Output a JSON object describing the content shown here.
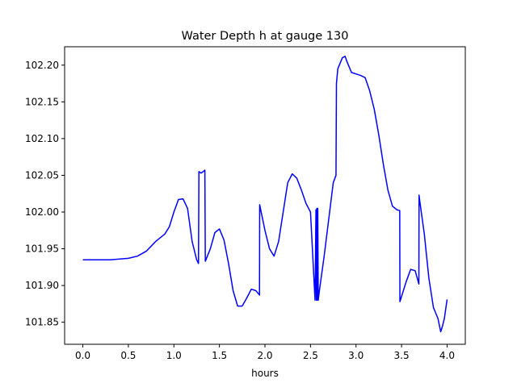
{
  "chart_data": {
    "type": "line",
    "title": "Water Depth h at gauge 130",
    "xlabel": "hours",
    "ylabel": "",
    "xlim": [
      -0.2,
      4.2
    ],
    "ylim": [
      101.82,
      102.225
    ],
    "xticks": [
      0.0,
      0.5,
      1.0,
      1.5,
      2.0,
      2.5,
      3.0,
      3.5,
      4.0
    ],
    "xtick_labels": [
      "0.0",
      "0.5",
      "1.0",
      "1.5",
      "2.0",
      "2.5",
      "3.0",
      "3.5",
      "4.0"
    ],
    "yticks": [
      101.85,
      101.9,
      101.95,
      102.0,
      102.05,
      102.1,
      102.15,
      102.2
    ],
    "ytick_labels": [
      "101.85",
      "101.90",
      "101.95",
      "102.00",
      "102.05",
      "102.10",
      "102.15",
      "102.20"
    ],
    "grid": false,
    "series": [
      {
        "color": "#0000ff",
        "x": [
          0.0,
          0.3,
          0.5,
          0.6,
          0.7,
          0.8,
          0.9,
          0.95,
          1.0,
          1.05,
          1.1,
          1.15,
          1.2,
          1.25,
          1.27,
          1.275,
          1.3,
          1.34,
          1.345,
          1.4,
          1.45,
          1.5,
          1.55,
          1.6,
          1.65,
          1.7,
          1.75,
          1.8,
          1.85,
          1.9,
          1.94,
          1.942,
          1.95,
          2.0,
          2.05,
          2.1,
          2.15,
          2.2,
          2.25,
          2.3,
          2.35,
          2.4,
          2.45,
          2.5,
          2.55,
          2.56,
          2.565,
          2.57,
          2.575,
          2.58,
          2.585,
          2.59,
          2.6,
          2.65,
          2.7,
          2.75,
          2.78,
          2.785,
          2.8,
          2.85,
          2.88,
          2.9,
          2.95,
          3.0,
          3.05,
          3.1,
          3.15,
          3.2,
          3.25,
          3.3,
          3.35,
          3.4,
          3.45,
          3.48,
          3.482,
          3.5,
          3.55,
          3.6,
          3.65,
          3.69,
          3.692,
          3.7,
          3.75,
          3.8,
          3.85,
          3.9,
          3.93,
          3.95,
          3.97,
          4.0
        ],
        "y": [
          101.935,
          101.935,
          101.937,
          101.94,
          101.947,
          101.96,
          101.97,
          101.98,
          102.0,
          102.017,
          102.018,
          102.005,
          101.96,
          101.935,
          101.93,
          102.055,
          102.053,
          102.057,
          101.933,
          101.95,
          101.972,
          101.977,
          101.962,
          101.93,
          101.893,
          101.872,
          101.872,
          101.883,
          101.895,
          101.893,
          101.887,
          102.01,
          102.005,
          101.975,
          101.95,
          101.94,
          101.96,
          102.0,
          102.04,
          102.052,
          102.046,
          102.03,
          102.012,
          102.0,
          101.88,
          102.003,
          101.88,
          102.005,
          101.88,
          102.005,
          101.88,
          101.885,
          101.895,
          101.94,
          101.99,
          102.04,
          102.05,
          102.175,
          102.195,
          102.21,
          102.212,
          102.205,
          102.19,
          102.188,
          102.186,
          102.183,
          102.165,
          102.14,
          102.105,
          102.065,
          102.03,
          102.008,
          102.003,
          102.002,
          101.878,
          101.885,
          101.905,
          101.922,
          101.92,
          101.902,
          102.023,
          102.015,
          101.97,
          101.91,
          101.87,
          101.855,
          101.837,
          101.845,
          101.855,
          101.881
        ]
      }
    ]
  }
}
